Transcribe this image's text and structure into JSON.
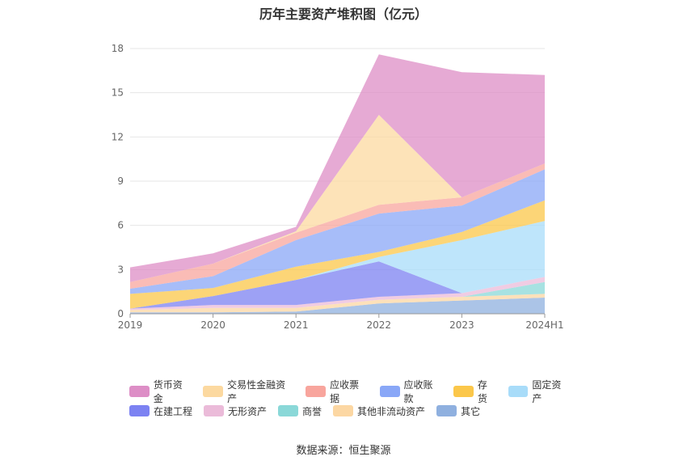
{
  "source_text": "数据来源：恒生聚源",
  "chart_data": {
    "type": "area",
    "stacked": true,
    "title": "历年主要资产堆积图（亿元）",
    "categories": [
      "2019",
      "2020",
      "2021",
      "2022",
      "2023",
      "2024H1"
    ],
    "ylim": [
      0,
      18
    ],
    "yticks": [
      0,
      3,
      6,
      9,
      12,
      15,
      18
    ],
    "grid": true,
    "legend_position": "bottom",
    "series": [
      {
        "name": "其它",
        "color": "#8fb0df",
        "values": [
          0.1,
          0.1,
          0.15,
          0.7,
          0.9,
          1.1
        ]
      },
      {
        "name": "其他非流动资产",
        "color": "#fcd7a3",
        "values": [
          0.15,
          0.3,
          0.25,
          0.25,
          0.25,
          0.25
        ]
      },
      {
        "name": "商誉",
        "color": "#8ad8d8",
        "values": [
          0,
          0,
          0,
          0,
          0,
          0.8
        ]
      },
      {
        "name": "无形资产",
        "color": "#ebbbd9",
        "values": [
          0.1,
          0.2,
          0.2,
          0.2,
          0.25,
          0.35
        ]
      },
      {
        "name": "在建工程",
        "color": "#7c82f2",
        "values": [
          0,
          0.6,
          1.7,
          2.4,
          0,
          0
        ]
      },
      {
        "name": "固定资产",
        "color": "#a8dcf9",
        "values": [
          0,
          0,
          0,
          0.3,
          3.6,
          3.8
        ]
      },
      {
        "name": "存货",
        "color": "#fbc74a",
        "values": [
          1.0,
          0.55,
          0.9,
          0.35,
          0.55,
          1.4
        ]
      },
      {
        "name": "应收账款",
        "color": "#89a7f7",
        "values": [
          0.35,
          0.8,
          1.8,
          2.6,
          1.8,
          2.1
        ]
      },
      {
        "name": "应收票据",
        "color": "#f8a59d",
        "values": [
          0.45,
          0.85,
          0.5,
          0.6,
          0.55,
          0.4
        ]
      },
      {
        "name": "交易性金融资产",
        "color": "#fcd9a0",
        "values": [
          0,
          0,
          0.1,
          6.1,
          0,
          0
        ]
      },
      {
        "name": "货币资金",
        "color": "#dd8ec6",
        "values": [
          1.0,
          0.7,
          0.3,
          4.1,
          8.5,
          6.0
        ]
      }
    ],
    "legend_order": [
      "货币资金",
      "交易性金融资产",
      "应收票据",
      "应收账款",
      "存货",
      "固定资产",
      "在建工程",
      "无形资产",
      "商誉",
      "其他非流动资产",
      "其它"
    ]
  }
}
